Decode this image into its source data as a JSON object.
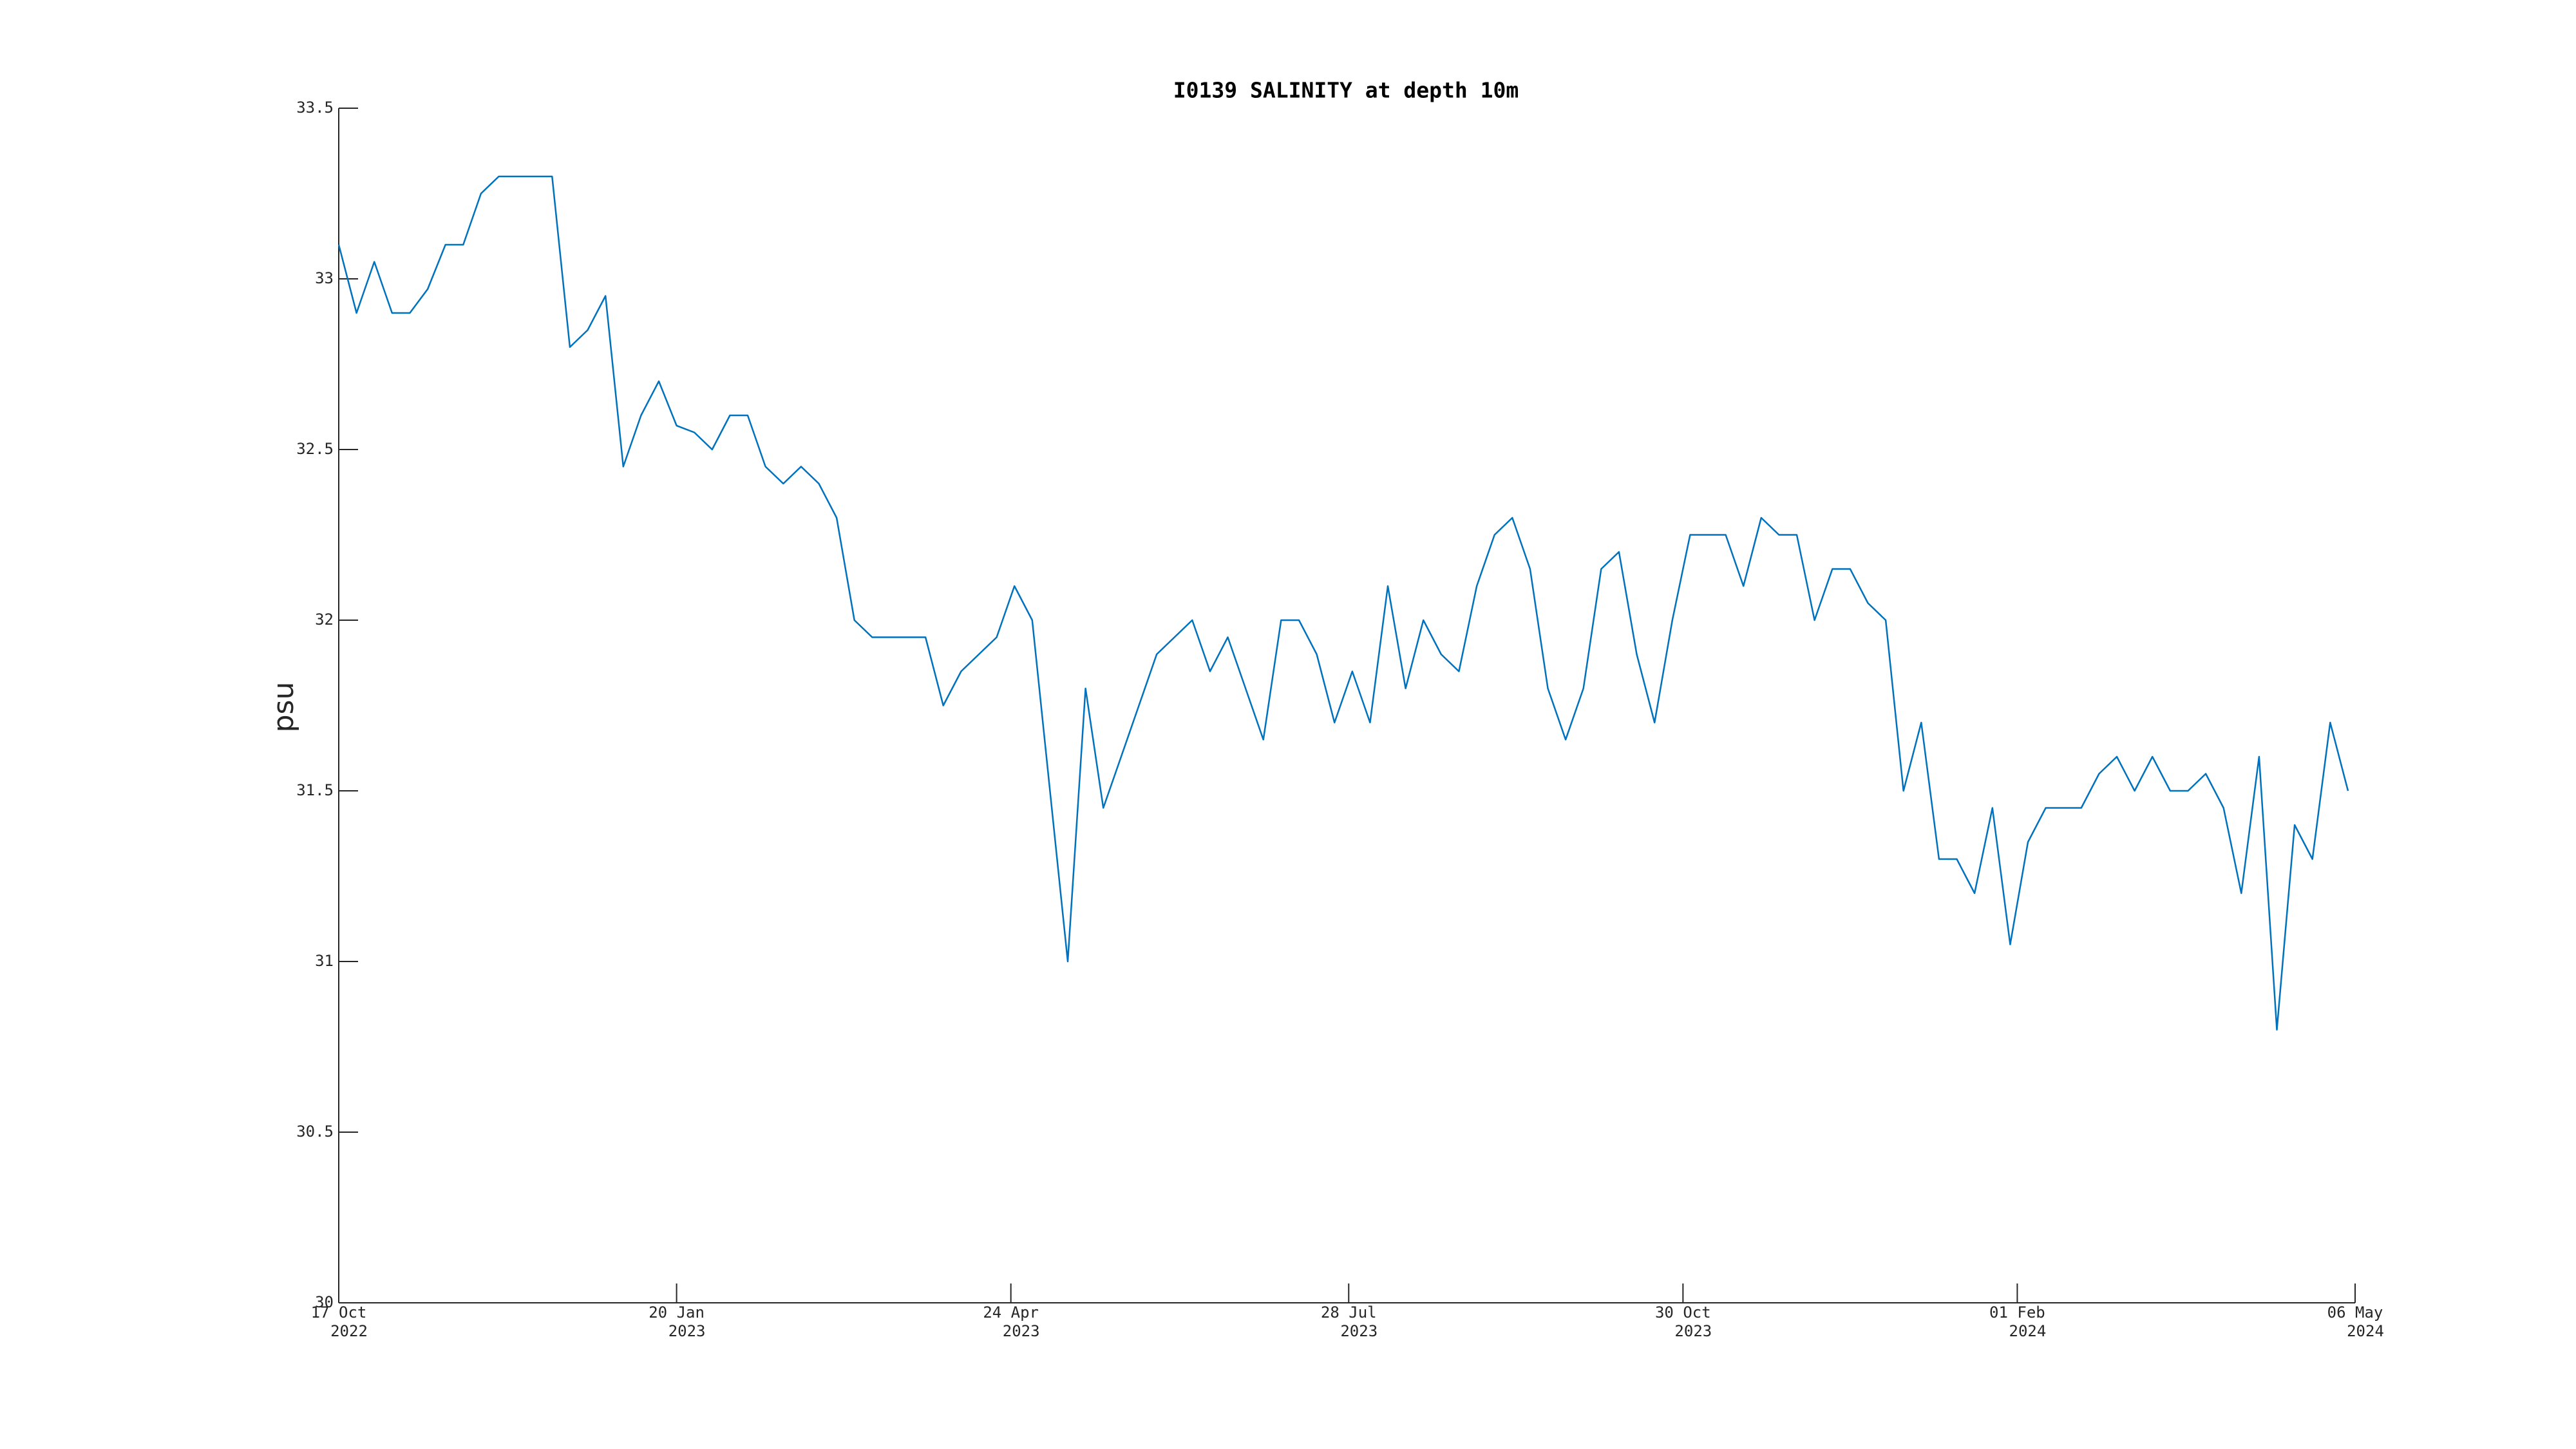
{
  "chart_data": {
    "type": "line",
    "title": "I0139 SALINITY at depth 10m",
    "y_label": "psu",
    "x": [
      "2022-10-17",
      "2022-10-22",
      "2022-10-27",
      "2022-11-01",
      "2022-11-06",
      "2022-11-11",
      "2022-11-16",
      "2022-11-21",
      "2022-11-26",
      "2022-12-01",
      "2022-12-06",
      "2022-12-11",
      "2022-12-16",
      "2022-12-21",
      "2022-12-26",
      "2022-12-31",
      "2023-01-05",
      "2023-01-10",
      "2023-01-15",
      "2023-01-20",
      "2023-01-25",
      "2023-01-30",
      "2023-02-04",
      "2023-02-09",
      "2023-02-14",
      "2023-02-19",
      "2023-02-24",
      "2023-03-01",
      "2023-03-06",
      "2023-03-11",
      "2023-03-16",
      "2023-03-21",
      "2023-03-26",
      "2023-03-31",
      "2023-04-05",
      "2023-04-10",
      "2023-04-15",
      "2023-04-20",
      "2023-04-25",
      "2023-04-30",
      "2023-05-05",
      "2023-05-10",
      "2023-05-15",
      "2023-05-20",
      "2023-05-25",
      "2023-05-30",
      "2023-06-04",
      "2023-06-09",
      "2023-06-14",
      "2023-06-19",
      "2023-06-24",
      "2023-06-29",
      "2023-07-04",
      "2023-07-09",
      "2023-07-14",
      "2023-07-19",
      "2023-07-24",
      "2023-07-29",
      "2023-08-03",
      "2023-08-08",
      "2023-08-13",
      "2023-08-18",
      "2023-08-23",
      "2023-08-28",
      "2023-09-02",
      "2023-09-07",
      "2023-09-12",
      "2023-09-17",
      "2023-09-22",
      "2023-09-27",
      "2023-10-02",
      "2023-10-07",
      "2023-10-12",
      "2023-10-17",
      "2023-10-22",
      "2023-10-27",
      "2023-11-01",
      "2023-11-06",
      "2023-11-11",
      "2023-11-16",
      "2023-11-21",
      "2023-11-26",
      "2023-12-01",
      "2023-12-06",
      "2023-12-11",
      "2023-12-16",
      "2023-12-21",
      "2023-12-26",
      "2023-12-31",
      "2024-01-05",
      "2024-01-10",
      "2024-01-15",
      "2024-01-20",
      "2024-01-25",
      "2024-01-30",
      "2024-02-04",
      "2024-02-09",
      "2024-02-14",
      "2024-02-19",
      "2024-02-24",
      "2024-02-29",
      "2024-03-05",
      "2024-03-10",
      "2024-03-15",
      "2024-03-20",
      "2024-03-25",
      "2024-03-30",
      "2024-04-04",
      "2024-04-09",
      "2024-04-14",
      "2024-04-19",
      "2024-04-24",
      "2024-04-29",
      "2024-05-04"
    ],
    "series": [
      {
        "color": "#0072bd",
        "values": [
          33.1,
          32.9,
          33.05,
          32.9,
          32.9,
          32.97,
          33.1,
          33.1,
          33.25,
          33.3,
          33.3,
          33.3,
          33.3,
          32.8,
          32.85,
          32.95,
          32.45,
          32.6,
          32.7,
          32.57,
          32.55,
          32.5,
          32.6,
          32.6,
          32.45,
          32.4,
          32.45,
          32.4,
          32.3,
          32.0,
          31.95,
          31.95,
          31.95,
          31.95,
          31.75,
          31.85,
          31.9,
          31.95,
          32.1,
          32.0,
          31.5,
          31.0,
          31.8,
          31.45,
          31.6,
          31.75,
          31.9,
          31.95,
          32.0,
          31.85,
          31.95,
          31.8,
          31.65,
          32.0,
          32.0,
          31.9,
          31.7,
          31.85,
          31.7,
          32.1,
          31.8,
          32.0,
          31.9,
          31.85,
          32.1,
          32.25,
          32.3,
          32.15,
          31.8,
          31.65,
          31.8,
          32.15,
          32.2,
          31.9,
          31.7,
          32.0,
          32.25,
          32.25,
          32.25,
          32.1,
          32.3,
          32.25,
          32.25,
          32.0,
          32.15,
          32.15,
          32.05,
          32.0,
          31.5,
          31.7,
          31.3,
          31.3,
          31.2,
          31.45,
          31.05,
          31.35,
          31.45,
          31.45,
          31.45,
          31.55,
          31.6,
          31.5,
          31.6,
          31.5,
          31.5,
          31.55,
          31.45,
          31.2,
          31.6,
          30.8,
          31.4,
          31.3,
          31.7,
          31.5
        ]
      }
    ],
    "xlim": [
      "2022-10-17",
      "2024-05-06"
    ],
    "xticks": [
      {
        "value": "2022-10-17",
        "label": [
          "17 Oct",
          "2022"
        ]
      },
      {
        "value": "2023-01-20",
        "label": [
          "20 Jan",
          "2023"
        ]
      },
      {
        "value": "2023-04-24",
        "label": [
          "24 Apr",
          "2023"
        ]
      },
      {
        "value": "2023-07-28",
        "label": [
          "28 Jul",
          "2023"
        ]
      },
      {
        "value": "2023-10-30",
        "label": [
          "30 Oct",
          "2023"
        ]
      },
      {
        "value": "2024-02-01",
        "label": [
          "01 Feb",
          "2024"
        ]
      },
      {
        "value": "2024-05-06",
        "label": [
          "06 May",
          "2024"
        ]
      }
    ],
    "ylim": [
      30,
      33.5
    ],
    "yticks": [
      30,
      30.5,
      31,
      31.5,
      32,
      32.5,
      33,
      33.5
    ],
    "grid": false
  }
}
